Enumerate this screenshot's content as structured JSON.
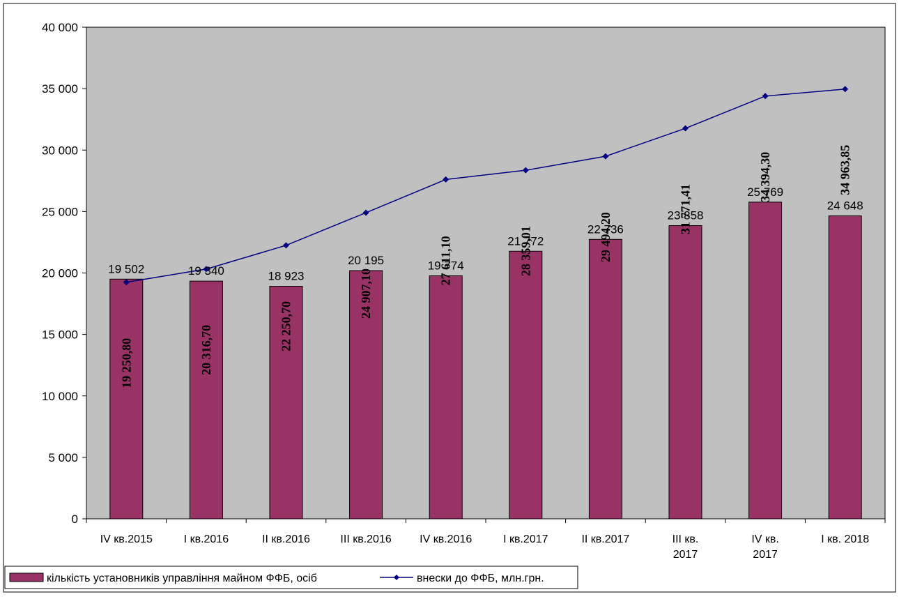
{
  "chart_data": {
    "type": "bar",
    "categories": [
      [
        "IV кв.2015"
      ],
      [
        "I кв.2016"
      ],
      [
        "II кв.2016"
      ],
      [
        "III кв.2016"
      ],
      [
        "IV кв.2016"
      ],
      [
        "I кв.2017"
      ],
      [
        "II кв.2017"
      ],
      [
        "III кв.",
        "2017"
      ],
      [
        "IV кв.",
        "2017"
      ],
      [
        "I кв. 2018"
      ]
    ],
    "ylim": [
      0,
      40000
    ],
    "yticks": [
      0,
      5000,
      10000,
      15000,
      20000,
      25000,
      30000,
      35000,
      40000
    ],
    "ytick_labels": [
      "0",
      "5 000",
      "10 000",
      "15 000",
      "20 000",
      "25 000",
      "30 000",
      "35 000",
      "40 000"
    ],
    "grid": false,
    "legend_position": "bottom-left",
    "series": [
      {
        "name": "кількість установників управління майном ФФБ, осіб",
        "type": "bar",
        "color": "#993366",
        "values": [
          19502,
          19340,
          18923,
          20195,
          19774,
          21772,
          22736,
          23858,
          25769,
          24648
        ],
        "labels": [
          "19 502",
          "19 340",
          "18 923",
          "20 195",
          "19 774",
          "21 772",
          "22 736",
          "23 858",
          "25 769",
          "24 648"
        ]
      },
      {
        "name": "внески до ФФБ, млн.грн.",
        "type": "line",
        "color": "#000080",
        "values": [
          19250.8,
          20316.7,
          22250.7,
          24907.1,
          27611.1,
          28359.01,
          29494.2,
          31771.41,
          34394.3,
          34963.85
        ],
        "labels": [
          "19 250,80",
          "20 316,70",
          "22 250,70",
          "24 907,10",
          "27 611,10",
          "28 359,01",
          "29 494,20",
          "31 771,41",
          "34 394,30",
          "34 963,85"
        ]
      }
    ],
    "plot_background": "#c0c0c0"
  }
}
